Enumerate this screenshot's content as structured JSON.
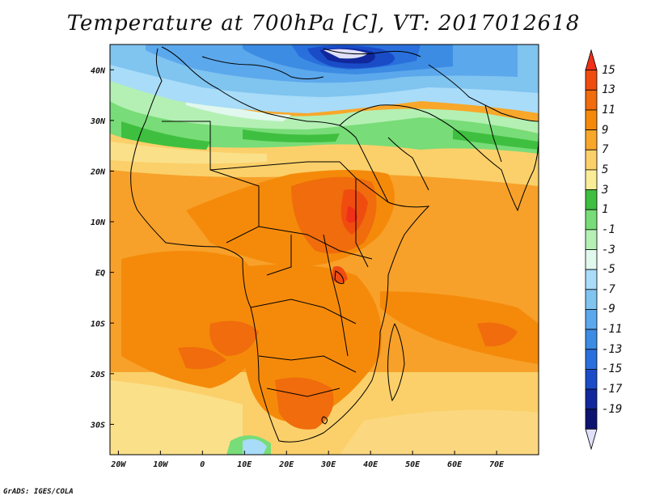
{
  "title": "Temperature at 700hPa [C], VT: 2017012618",
  "credit": "GrADS: IGES/COLA",
  "map": {
    "lon_range": [
      -22,
      80
    ],
    "lat_range": [
      -36,
      45
    ],
    "x_ticks": [
      {
        "lon": -20,
        "label": "20W"
      },
      {
        "lon": -10,
        "label": "10W"
      },
      {
        "lon": 0,
        "label": "0"
      },
      {
        "lon": 10,
        "label": "10E"
      },
      {
        "lon": 20,
        "label": "20E"
      },
      {
        "lon": 30,
        "label": "30E"
      },
      {
        "lon": 40,
        "label": "40E"
      },
      {
        "lon": 50,
        "label": "50E"
      },
      {
        "lon": 60,
        "label": "60E"
      },
      {
        "lon": 70,
        "label": "70E"
      }
    ],
    "y_ticks": [
      {
        "lat": 40,
        "label": "40N"
      },
      {
        "lat": 30,
        "label": "30N"
      },
      {
        "lat": 20,
        "label": "20N"
      },
      {
        "lat": 10,
        "label": "10N"
      },
      {
        "lat": 0,
        "label": "EQ"
      },
      {
        "lat": -10,
        "label": "10S"
      },
      {
        "lat": -20,
        "label": "20S"
      },
      {
        "lat": -30,
        "label": "30S"
      }
    ]
  },
  "colorbar": {
    "levels": [
      "15",
      "13",
      "11",
      "9",
      "7",
      "5",
      "3",
      "1",
      "-1",
      "-3",
      "-5",
      "-7",
      "-9",
      "-11",
      "-13",
      "-15",
      "-17",
      "-19"
    ],
    "colors": [
      "#f03018",
      "#f04c10",
      "#f06c0c",
      "#f58a0a",
      "#f8a72a",
      "#fbd06a",
      "#fbec98",
      "#3fbf3f",
      "#78dc78",
      "#b4f0b4",
      "#e0f8ee",
      "#a8dcf8",
      "#80c4f0",
      "#5ca8ec",
      "#3c8ce4",
      "#2a70dc",
      "#1a4cc8",
      "#10289c",
      "#0c1470",
      "#e0e0f8"
    ]
  }
}
